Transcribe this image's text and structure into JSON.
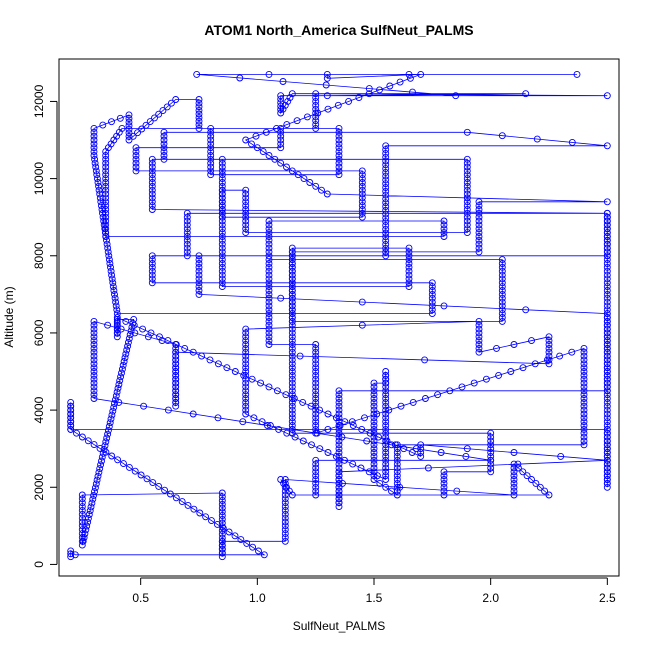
{
  "chart_data": {
    "type": "line",
    "title": "ATOM1 North_America SulfNeut_PALMS",
    "xlabel": "SulfNeut_PALMS",
    "ylabel": "Altitude (m)",
    "xlim": [
      0.15,
      2.55
    ],
    "ylim": [
      -300,
      13100
    ],
    "x_ticks": [
      0.5,
      1.0,
      1.5,
      2.0,
      2.5
    ],
    "x_tick_labels": [
      "0.5",
      "1.0",
      "1.5",
      "2.0",
      "2.5"
    ],
    "y_ticks": [
      0,
      2000,
      4000,
      6000,
      8000,
      10000,
      12000
    ],
    "y_tick_labels": [
      "0",
      "2000",
      "4000",
      "6000",
      "8000",
      "10000",
      "12000"
    ],
    "grid": false,
    "legend": "none",
    "series_color": "#0000ff",
    "marker": "open-circle",
    "series": [
      {
        "points": [
          [
            0.2,
            200
          ],
          [
            0.2,
            350
          ],
          [
            0.22,
            250
          ],
          [
            1.03,
            250
          ],
          [
            0.2,
            3500
          ],
          [
            0.2,
            4200
          ],
          [
            0.2,
            3500
          ],
          [
            2.5,
            3500
          ],
          [
            2.5,
            2000
          ],
          [
            2.5,
            9100
          ],
          [
            2.5,
            8000
          ],
          [
            0.75,
            8000
          ],
          [
            0.75,
            7000
          ],
          [
            2.5,
            6500
          ],
          [
            2.5,
            4500
          ],
          [
            1.35,
            4500
          ],
          [
            1.35,
            1500
          ],
          [
            1.35,
            2400
          ],
          [
            2.5,
            2700
          ],
          [
            1.7,
            3100
          ],
          [
            1.7,
            2800
          ],
          [
            0.4,
            6400
          ],
          [
            0.4,
            5900
          ],
          [
            0.4,
            6350
          ],
          [
            0.47,
            6350
          ],
          [
            0.25,
            500
          ],
          [
            0.25,
            1800
          ],
          [
            0.85,
            1850
          ],
          [
            0.85,
            200
          ],
          [
            0.85,
            600
          ],
          [
            1.12,
            600
          ],
          [
            1.12,
            1100
          ],
          [
            1.12,
            2200
          ],
          [
            2.1,
            1800
          ],
          [
            2.1,
            2600
          ],
          [
            2.25,
            1800
          ],
          [
            1.25,
            1800
          ],
          [
            1.25,
            2700
          ],
          [
            2.0,
            2700
          ],
          [
            0.3,
            4300
          ],
          [
            0.3,
            6300
          ],
          [
            0.65,
            5700
          ],
          [
            0.65,
            4100
          ],
          [
            0.65,
            5500
          ],
          [
            2.25,
            5200
          ],
          [
            2.25,
            5900
          ],
          [
            1.95,
            5500
          ],
          [
            1.95,
            6300
          ],
          [
            0.95,
            6100
          ],
          [
            0.95,
            3900
          ],
          [
            1.55,
            2200
          ],
          [
            1.55,
            5000
          ],
          [
            1.55,
            4700
          ],
          [
            1.5,
            4700
          ],
          [
            1.5,
            2200
          ],
          [
            1.6,
            1800
          ],
          [
            1.6,
            3100
          ],
          [
            2.4,
            3100
          ],
          [
            2.4,
            5600
          ],
          [
            1.25,
            3400
          ],
          [
            1.25,
            5700
          ],
          [
            1.05,
            5700
          ],
          [
            1.05,
            7900
          ],
          [
            2.05,
            7900
          ],
          [
            2.05,
            6300
          ],
          [
            1.15,
            6300
          ],
          [
            1.15,
            8200
          ],
          [
            1.65,
            8200
          ],
          [
            1.65,
            7200
          ],
          [
            0.85,
            7200
          ],
          [
            0.85,
            9700
          ],
          [
            0.95,
            9700
          ],
          [
            0.95,
            8600
          ],
          [
            1.9,
            8600
          ],
          [
            1.9,
            10500
          ],
          [
            0.55,
            10500
          ],
          [
            0.55,
            9200
          ],
          [
            2.5,
            9100
          ],
          [
            0.7,
            9100
          ],
          [
            0.7,
            8000
          ],
          [
            1.05,
            8000
          ],
          [
            1.05,
            8900
          ],
          [
            1.8,
            8900
          ],
          [
            1.8,
            8500
          ],
          [
            0.35,
            8500
          ],
          [
            0.35,
            10700
          ],
          [
            0.42,
            11300
          ],
          [
            0.8,
            11300
          ],
          [
            0.8,
            10100
          ],
          [
            1.35,
            10100
          ],
          [
            1.35,
            11300
          ],
          [
            1.1,
            11300
          ],
          [
            1.1,
            10800
          ],
          [
            0.48,
            10800
          ],
          [
            0.48,
            10200
          ],
          [
            1.45,
            10200
          ],
          [
            1.45,
            9000
          ],
          [
            0.85,
            9000
          ],
          [
            0.85,
            10500
          ],
          [
            0.6,
            10500
          ],
          [
            0.6,
            11200
          ],
          [
            1.9,
            11200
          ],
          [
            2.5,
            10850
          ],
          [
            1.55,
            10850
          ],
          [
            1.55,
            8000
          ],
          [
            0.55,
            8000
          ],
          [
            0.55,
            7300
          ],
          [
            1.75,
            7300
          ],
          [
            1.75,
            6500
          ],
          [
            0.4,
            6500
          ],
          [
            0.3,
            10600
          ],
          [
            0.3,
            11300
          ],
          [
            0.45,
            11650
          ],
          [
            0.45,
            11000
          ],
          [
            0.65,
            12050
          ],
          [
            0.75,
            12050
          ],
          [
            0.75,
            11300
          ],
          [
            1.25,
            11300
          ],
          [
            1.25,
            12200
          ],
          [
            2.5,
            12150
          ],
          [
            1.1,
            12150
          ],
          [
            1.1,
            11700
          ],
          [
            1.15,
            12200
          ],
          [
            2.15,
            12200
          ],
          [
            1.3,
            12150
          ],
          [
            1.85,
            12150
          ],
          [
            0.74,
            12700
          ],
          [
            1.05,
            12700
          ],
          [
            2.37,
            12700
          ],
          [
            1.65,
            12700
          ],
          [
            1.3,
            12700
          ],
          [
            1.3,
            12600
          ],
          [
            1.7,
            12700
          ],
          [
            0.95,
            11000
          ],
          [
            1.3,
            9600
          ],
          [
            2.5,
            9400
          ],
          [
            1.95,
            9400
          ],
          [
            1.95,
            8100
          ],
          [
            1.15,
            8100
          ],
          [
            1.15,
            3400
          ],
          [
            2.0,
            3400
          ],
          [
            2.0,
            2400
          ],
          [
            1.8,
            2400
          ],
          [
            1.8,
            1800
          ],
          [
            1.15,
            1800
          ],
          [
            1.1,
            2200
          ]
        ]
      }
    ]
  }
}
